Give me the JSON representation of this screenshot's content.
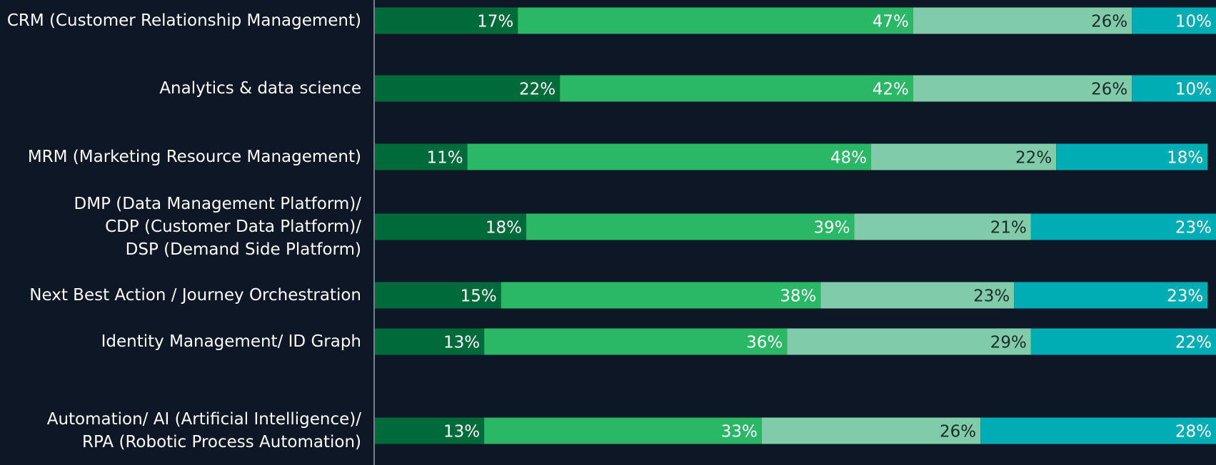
{
  "chart_data": {
    "type": "stacked-barh",
    "categories": [
      "CRM (Customer Relationship Management)",
      "Analytics & data science",
      "MRM (Marketing Resource Management)",
      "DMP (Data Management Platform)/\nCDP (Customer Data Platform)/\nDSP (Demand Side Platform)",
      "Next Best Action / Journey Orchestration",
      "Identity Management/ ID Graph",
      "Automation/ AI (Artificial Intelligence)/\nRPA (Robotic Process Automation)"
    ],
    "xlim": [
      0,
      100
    ],
    "series": [
      {
        "color": "#006b3a",
        "label_color": "#ffffff",
        "values": [
          17,
          22,
          11,
          18,
          15,
          13,
          13
        ],
        "value_labels": [
          "17%",
          "22%",
          "11%",
          "18%",
          "15%",
          "13%",
          "13%"
        ]
      },
      {
        "color": "#2bb866",
        "label_color": "#ffffff",
        "values": [
          47,
          42,
          48,
          39,
          38,
          36,
          33
        ],
        "value_labels": [
          "47%",
          "42%",
          "48%",
          "39%",
          "38%",
          "36%",
          "33%"
        ]
      },
      {
        "color": "#80cba9",
        "label_color": "#1b2a2a",
        "values": [
          26,
          26,
          22,
          21,
          23,
          29,
          26
        ],
        "value_labels": [
          "26%",
          "26%",
          "22%",
          "21%",
          "23%",
          "29%",
          "26%"
        ]
      },
      {
        "color": "#00adb5",
        "label_color": "#ffffff",
        "values": [
          10,
          10,
          18,
          23,
          23,
          22,
          28
        ],
        "value_labels": [
          "10%",
          "10%",
          "18%",
          "23%",
          "23%",
          "22%",
          "28%"
        ]
      }
    ]
  }
}
